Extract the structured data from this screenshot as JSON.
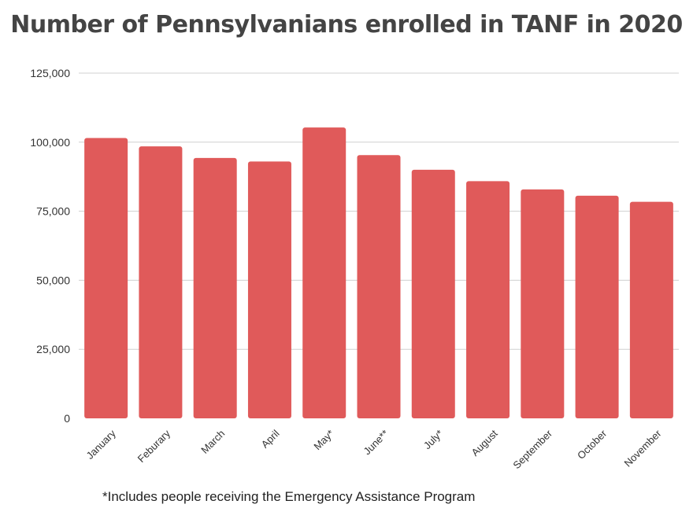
{
  "chart_data": {
    "type": "bar",
    "title": "Number of Pennsylvanians enrolled in TANF in 2020",
    "categories": [
      "January",
      "Feburary",
      "March",
      "April",
      "May*",
      "June**",
      "July*",
      "August",
      "September",
      "October",
      "November"
    ],
    "values": [
      101500,
      98500,
      94300,
      93000,
      105300,
      95300,
      90000,
      85900,
      82900,
      80600,
      78400
    ],
    "ylim": [
      0,
      125000
    ],
    "yticks": [
      0,
      25000,
      50000,
      75000,
      100000,
      125000
    ],
    "ytick_labels": [
      "0",
      "25,000",
      "50,000",
      "75,000",
      "100,000",
      "125,000"
    ],
    "xlabel": "",
    "ylabel": "",
    "grid": true,
    "bar_color": "#e05a5a",
    "footnote": "*Includes people receiving the Emergency Assistance Program"
  }
}
